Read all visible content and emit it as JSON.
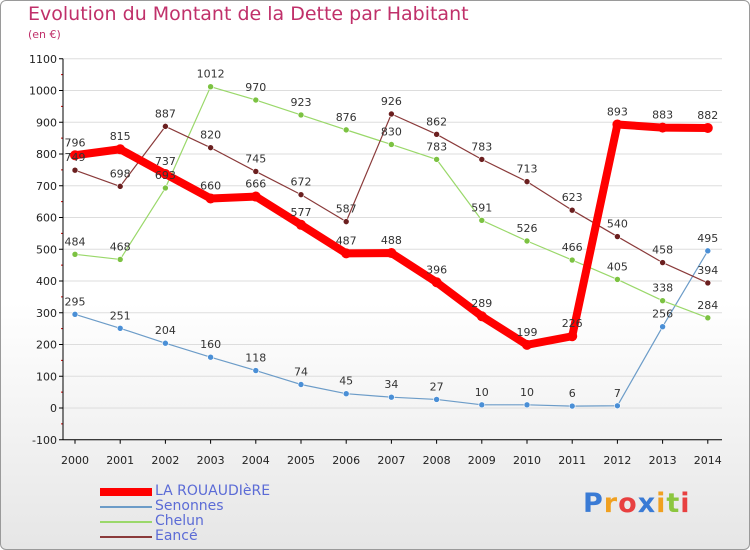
{
  "title": "Evolution du Montant de la Dette par Habitant",
  "subtitle": "(en €)",
  "colors": {
    "title": "#c0306a",
    "legend_text": "#5b6bd6",
    "grid": "#dddddd",
    "axis": "#000000"
  },
  "logo": {
    "text": "Proxiti",
    "letters": [
      "P",
      "r",
      "o",
      "x",
      "i",
      "t",
      "i"
    ],
    "letter_colors": [
      "#3a7bd5",
      "#f0a020",
      "#e84040",
      "#3a7bd5",
      "#f0a020",
      "#8cc63f",
      "#e84040"
    ]
  },
  "chart_data": {
    "type": "line",
    "title": "Evolution du Montant de la Dette par Habitant",
    "ylabel": "(en €)",
    "xlabel": "",
    "x": [
      "2000",
      "2001",
      "2002",
      "2003",
      "2004",
      "2005",
      "2006",
      "2007",
      "2008",
      "2009",
      "2010",
      "2011",
      "2012",
      "2013",
      "2014"
    ],
    "ylim": [
      -100,
      1100
    ],
    "yticks": [
      -100,
      0,
      100,
      200,
      300,
      400,
      500,
      600,
      700,
      800,
      900,
      1000,
      1100
    ],
    "grid": "horizontal",
    "legend_position": "bottom-left",
    "series": [
      {
        "name": "LA ROUAUDIèRE",
        "color": "#ff0000",
        "marker_color": "#ff0000",
        "width": 8,
        "values": [
          796,
          815,
          737,
          660,
          666,
          577,
          487,
          488,
          396,
          289,
          199,
          226,
          893,
          883,
          882
        ],
        "labels": [
          "796",
          "815",
          "737",
          "660",
          "666",
          "577",
          "487",
          "488",
          "396",
          "289",
          "199",
          "226",
          "893",
          "883",
          "882"
        ]
      },
      {
        "name": "Senonnes",
        "color": "#6c9cc8",
        "marker_color": "#4a8fd6",
        "width": 1.2,
        "values": [
          295,
          251,
          204,
          160,
          118,
          74,
          45,
          34,
          27,
          10,
          10,
          6,
          7,
          256,
          495
        ],
        "labels": [
          "295",
          "251",
          "204",
          "160",
          "118",
          "74",
          "45",
          "34",
          "27",
          "10",
          "10",
          "6",
          "7",
          "256",
          "495"
        ]
      },
      {
        "name": "Chelun",
        "color": "#9ad86a",
        "marker_color": "#7cc242",
        "width": 1.2,
        "values": [
          484,
          468,
          693,
          1012,
          970,
          923,
          876,
          830,
          783,
          591,
          526,
          466,
          405,
          338,
          284
        ],
        "labels": [
          "484",
          "468",
          "693",
          "1012",
          "970",
          "923",
          "876",
          "830",
          "783",
          "591",
          "526",
          "466",
          "405",
          "338",
          "284"
        ]
      },
      {
        "name": "Eancé",
        "color": "#8a3a3a",
        "marker_color": "#6b1f1f",
        "width": 1.2,
        "values": [
          749,
          698,
          887,
          820,
          745,
          672,
          587,
          926,
          862,
          783,
          713,
          623,
          540,
          458,
          394
        ],
        "labels": [
          "749",
          "698",
          "887",
          "820",
          "745",
          "672",
          "587",
          "926",
          "862",
          "783",
          "713",
          "623",
          "540",
          "458",
          "394"
        ]
      }
    ]
  }
}
